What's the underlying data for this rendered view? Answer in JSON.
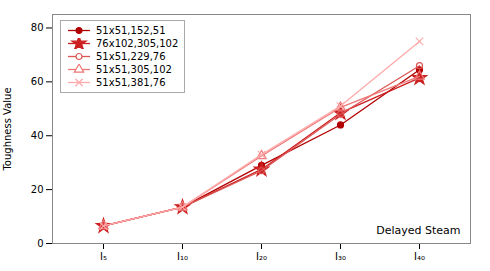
{
  "chart_data": {
    "type": "line",
    "categories": [
      "I₅",
      "I₁₀",
      "I₂₀",
      "I₃₀",
      "I₄₀"
    ],
    "series": [
      {
        "name": "51x51,152,51",
        "color": "#b20000",
        "marker": "circle",
        "values": [
          6.5,
          13.5,
          29.0,
          44.0,
          64.5
        ]
      },
      {
        "name": "76x102,305,102",
        "color": "#cc2020",
        "marker": "star",
        "values": [
          6.5,
          13.5,
          27.5,
          48.5,
          61.5
        ]
      },
      {
        "name": "51x51,229,76",
        "color": "#dd5555",
        "marker": "circle-open",
        "values": [
          6.5,
          13.5,
          27.0,
          48.0,
          66.0
        ]
      },
      {
        "name": "51x51,305,102",
        "color": "#ee7777",
        "marker": "triangle-open",
        "values": [
          6.5,
          13.5,
          32.5,
          50.5,
          62.0
        ]
      },
      {
        "name": "51x51,381,76",
        "color": "#ffaaaa",
        "marker": "x",
        "values": [
          6.5,
          13.5,
          33.0,
          51.0,
          75.0
        ]
      }
    ],
    "ylabel": "Toughness Value",
    "annotation": "Delayed Steam",
    "ylim": [
      0,
      85
    ],
    "yticks": [
      0,
      20,
      40,
      60,
      80
    ],
    "legend": "upper left",
    "grid": false
  }
}
